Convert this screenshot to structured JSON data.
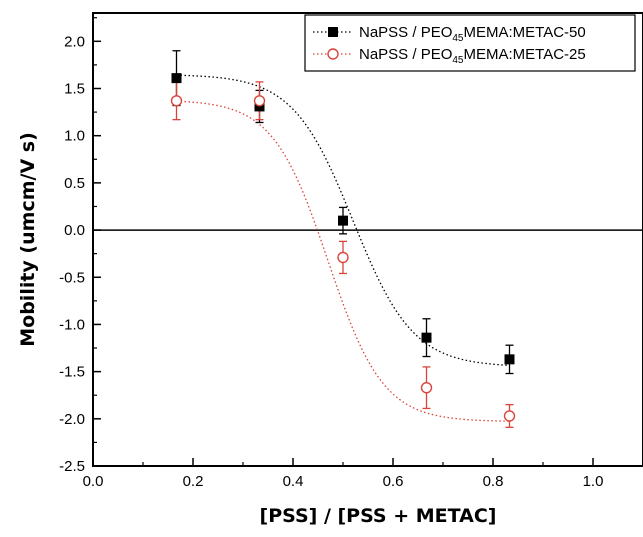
{
  "chart_data": {
    "type": "scatter",
    "xlabel": "[PSS] / [PSS + METAC]",
    "ylabel": "Mobility (umcm/V s)",
    "xlim": [
      0.0,
      1.1
    ],
    "ylim": [
      -2.5,
      2.3
    ],
    "x_ticks": [
      0.0,
      0.2,
      0.4,
      0.6,
      0.8,
      1.0
    ],
    "x_tick_labels": [
      "0.0",
      "0.2",
      "0.4",
      "0.6",
      "0.8",
      "1.0"
    ],
    "y_ticks": [
      2.0,
      1.5,
      1.0,
      0.5,
      0.0,
      -0.5,
      -1.0,
      -1.5,
      -2.0,
      -2.5
    ],
    "y_tick_labels": [
      "2.0",
      "1.5",
      "1.0",
      "0.5",
      "0.0",
      "-0.5",
      "-1.0",
      "-1.5",
      "-2.0",
      "-2.5"
    ],
    "zero_line": true,
    "grid": false,
    "legend_position": "top-right",
    "series": [
      {
        "name": "NaPSS / PEO45MEMA:METAC-50",
        "legend": {
          "pre": "NaPSS / PEO",
          "sub": "45",
          "post": "MEMA:METAC-50"
        },
        "marker": "filled-square",
        "color": "#000000",
        "fit_line": "dotted",
        "x": [
          0.167,
          0.333,
          0.5,
          0.667,
          0.833
        ],
        "y": [
          1.61,
          1.31,
          0.1,
          -1.14,
          -1.37
        ],
        "error": [
          0.29,
          0.17,
          0.14,
          0.2,
          0.15
        ],
        "fit_params": {
          "A1": 1.65,
          "A2": -1.45,
          "x0": 0.52,
          "dx": 0.06
        }
      },
      {
        "name": "NaPSS / PEO45MEMA:METAC-25",
        "legend": {
          "pre": "NaPSS / PEO",
          "sub": "45",
          "post": "MEMA:METAC-25"
        },
        "marker": "open-circle",
        "color": "#d9443a",
        "fit_line": "dotted",
        "x": [
          0.167,
          0.333,
          0.5,
          0.667,
          0.833
        ],
        "y": [
          1.37,
          1.37,
          -0.29,
          -1.67,
          -1.97
        ],
        "error": [
          0.2,
          0.2,
          0.17,
          0.22,
          0.12
        ],
        "fit_params": {
          "A1": 1.38,
          "A2": -2.03,
          "x0": 0.47,
          "dx": 0.055
        }
      }
    ]
  }
}
